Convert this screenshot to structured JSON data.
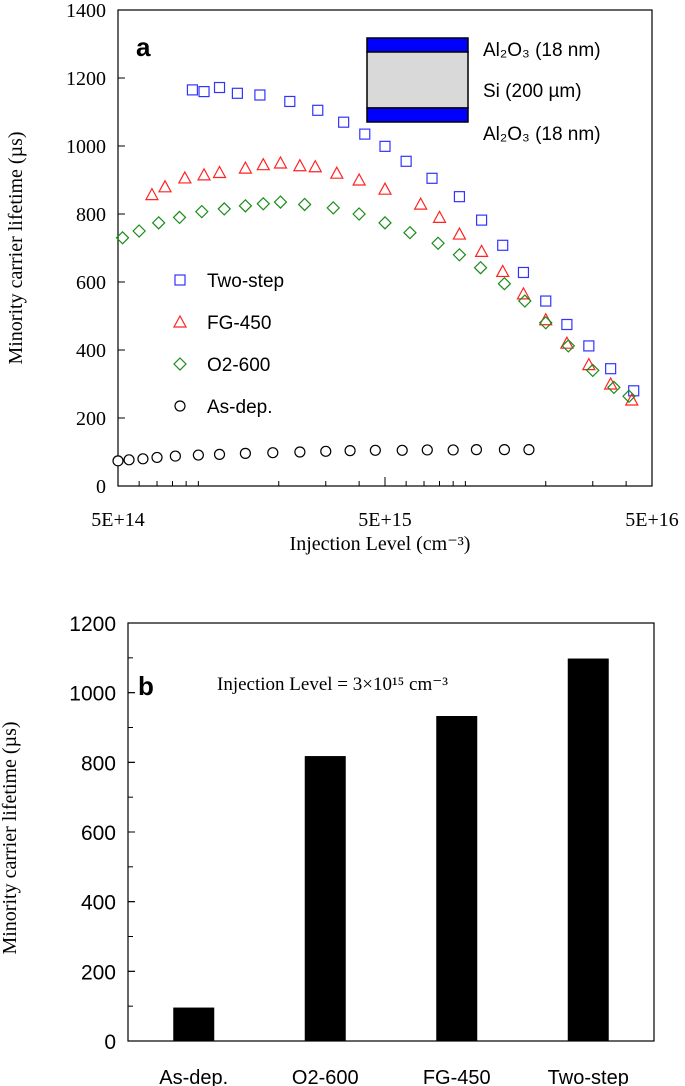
{
  "chart_data": [
    {
      "panel_label": "a",
      "type": "scatter",
      "xlabel": "Injection Level (cm⁻³)",
      "ylabel": "Minority carrier lifetime (µs)",
      "x_scale": "log",
      "xlim": [
        500000000000000.0,
        5e+16
      ],
      "ylim": [
        0,
        1400
      ],
      "x_ticks": [
        {
          "value": 500000000000000.0,
          "label": "5E+14"
        },
        {
          "value": 5000000000000000.0,
          "label": "5E+15"
        },
        {
          "value": 5e+16,
          "label": "5E+16"
        }
      ],
      "y_ticks": [
        0,
        200,
        400,
        600,
        800,
        1000,
        1200,
        1400
      ],
      "grid": false,
      "legend_position": "center-left",
      "inset_layers": [
        "Al₂O₃ (18 nm)",
        "Si (200  µm)",
        "Al₂O₃ (18 nm)"
      ],
      "inset_colors": {
        "oxide": "#0000ff",
        "silicon": "#d9d9d9"
      },
      "series": [
        {
          "name": "Two-step",
          "marker": "square",
          "color": "#3333ff",
          "x": [
            950000000000000.0,
            1050000000000000.0,
            1200000000000000.0,
            1400000000000000.0,
            1700000000000000.0,
            2200000000000000.0,
            2800000000000000.0,
            3500000000000000.0,
            4200000000000000.0,
            5000000000000000.0,
            6000000000000000.0,
            7500000000000000.0,
            9500000000000000.0,
            1.15e+16,
            1.38e+16,
            1.65e+16,
            2e+16,
            2.4e+16,
            2.9e+16,
            3.5e+16,
            4.27e+16
          ],
          "y": [
            1165,
            1160,
            1172,
            1155,
            1150,
            1131,
            1105,
            1070,
            1035,
            999,
            955,
            905,
            851,
            782,
            708,
            628,
            544,
            475,
            412,
            345,
            280
          ]
        },
        {
          "name": "FG-450",
          "marker": "triangle",
          "color": "#ff2222",
          "x": [
            670000000000000.0,
            750000000000000.0,
            890000000000000.0,
            1050000000000000.0,
            1200000000000000.0,
            1500000000000000.0,
            1750000000000000.0,
            2030000000000000.0,
            2400000000000000.0,
            2740000000000000.0,
            3300000000000000.0,
            4000000000000000.0,
            5000000000000000.0,
            6800000000000000.0,
            8000000000000000.0,
            9500000000000000.0,
            1.15e+16,
            1.38e+16,
            1.65e+16,
            2e+16,
            2.4e+16,
            2.9e+16,
            3.5e+16,
            4.2e+16
          ],
          "y": [
            857,
            880,
            906,
            915,
            922,
            935,
            945,
            950,
            942,
            939,
            920,
            900,
            873,
            829,
            790,
            741,
            690,
            631,
            565,
            489,
            420,
            357,
            300,
            253
          ]
        },
        {
          "name": "O2-600",
          "marker": "diamond",
          "color": "#1a8c1a",
          "x": [
            520000000000000.0,
            600000000000000.0,
            710000000000000.0,
            850000000000000.0,
            1030000000000000.0,
            1250000000000000.0,
            1500000000000000.0,
            1750000000000000.0,
            2030000000000000.0,
            2500000000000000.0,
            3200000000000000.0,
            4000000000000000.0,
            5000000000000000.0,
            6200000000000000.0,
            7900000000000000.0,
            9500000000000000.0,
            1.14e+16,
            1.4e+16,
            1.67e+16,
            2e+16,
            2.43e+16,
            3e+16,
            3.6e+16,
            4.1e+16
          ],
          "y": [
            730,
            750,
            774,
            790,
            807,
            815,
            824,
            830,
            835,
            828,
            818,
            800,
            774,
            745,
            714,
            680,
            642,
            595,
            544,
            480,
            412,
            340,
            290,
            264
          ]
        },
        {
          "name": "As-dep.",
          "marker": "circle",
          "color": "#000000",
          "x": [
            500000000000000.0,
            550000000000000.0,
            620000000000000.0,
            700000000000000.0,
            820000000000000.0,
            1000000000000000.0,
            1200000000000000.0,
            1500000000000000.0,
            1900000000000000.0,
            2400000000000000.0,
            3000000000000000.0,
            3700000000000000.0,
            4600000000000000.0,
            5800000000000000.0,
            7200000000000000.0,
            9000000000000000.0,
            1.1e+16,
            1.4e+16,
            1.73e+16
          ],
          "y": [
            74,
            77,
            80,
            84,
            88,
            91,
            93,
            96,
            98,
            100,
            102,
            104,
            105,
            105,
            106,
            106,
            107,
            107,
            107
          ]
        }
      ]
    },
    {
      "panel_label": "b",
      "type": "bar",
      "annotation": "Injection Level = 3×10¹⁵ cm⁻³",
      "ylabel": "Minority carrier lifetime (µs)",
      "ylim": [
        0,
        1200
      ],
      "y_ticks": [
        0,
        200,
        400,
        600,
        800,
        1000,
        1200
      ],
      "grid": false,
      "categories": [
        "As-dep.",
        "O2-600",
        "FG-450",
        "Two-step"
      ],
      "values": [
        96,
        818,
        933,
        1098
      ],
      "bar_color": "#000000"
    }
  ]
}
